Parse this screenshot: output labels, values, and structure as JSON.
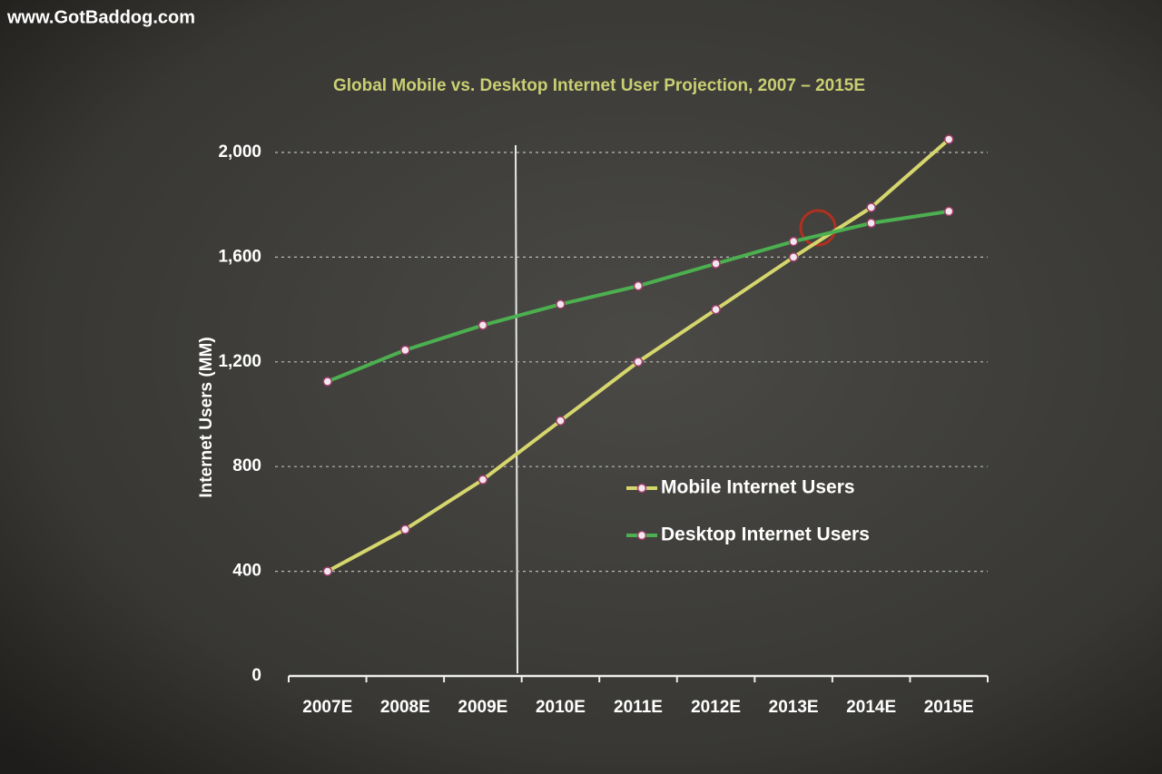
{
  "watermark": "www.GotBaddog.com",
  "chart_data": {
    "type": "line",
    "title": "Global Mobile vs. Desktop Internet User Projection, 2007 – 2015E",
    "y_label": "Internet Users (MM)",
    "categories": [
      "2007E",
      "2008E",
      "2009E",
      "2010E",
      "2011E",
      "2012E",
      "2013E",
      "2014E",
      "2015E"
    ],
    "series": [
      {
        "name": "Mobile Internet Users",
        "color": "#d6d66e",
        "values": [
          400,
          560,
          750,
          975,
          1200,
          1400,
          1600,
          1790,
          2050
        ]
      },
      {
        "name": "Desktop Internet Users",
        "color": "#4caf50",
        "values": [
          1125,
          1245,
          1340,
          1420,
          1490,
          1575,
          1660,
          1730,
          1775
        ]
      }
    ],
    "ylim": [
      0,
      2000
    ],
    "yticks": [
      0,
      400,
      800,
      {
        "value": 1200,
        "label": "1,200"
      },
      {
        "value": 1600,
        "label": "1,600"
      },
      {
        "value": 2000,
        "label": "2,000"
      }
    ],
    "grid": true
  }
}
